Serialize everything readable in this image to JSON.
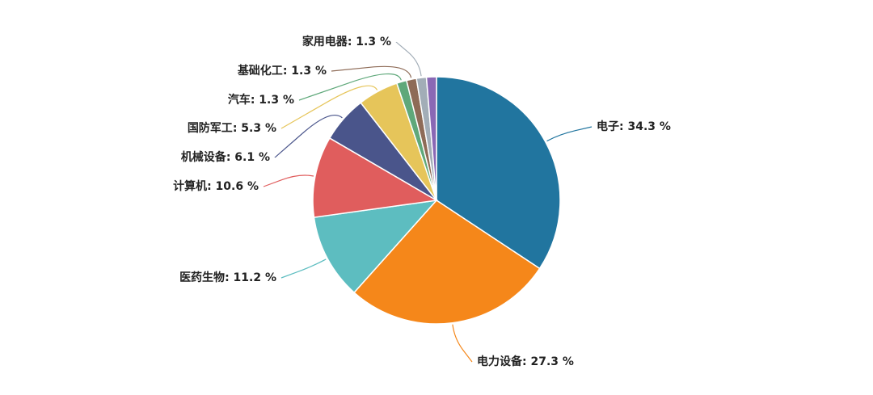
{
  "chart_data": {
    "type": "pie",
    "categories": [
      "电子",
      "电力设备",
      "医药生物",
      "计算机",
      "机械设备",
      "国防军工",
      "汽车",
      "基础化工",
      "家用电器",
      null
    ],
    "values": [
      34.3,
      27.3,
      11.2,
      10.6,
      6.1,
      5.3,
      1.3,
      1.3,
      1.3,
      1.3
    ],
    "value_labels": [
      "34.3 %",
      "27.3 %",
      "11.2 %",
      "10.6 %",
      "6.1 %",
      "5.3 %",
      "1.3 %",
      "1.3 %",
      "1.3 %",
      null
    ],
    "label_separator": ": ",
    "colors": [
      "#21759f",
      "#f5871a",
      "#5dbdc0",
      "#e05d5d",
      "#4a558b",
      "#e6c55a",
      "#5fa87a",
      "#8e6b57",
      "#a2adb7",
      "#8a68b5"
    ]
  }
}
